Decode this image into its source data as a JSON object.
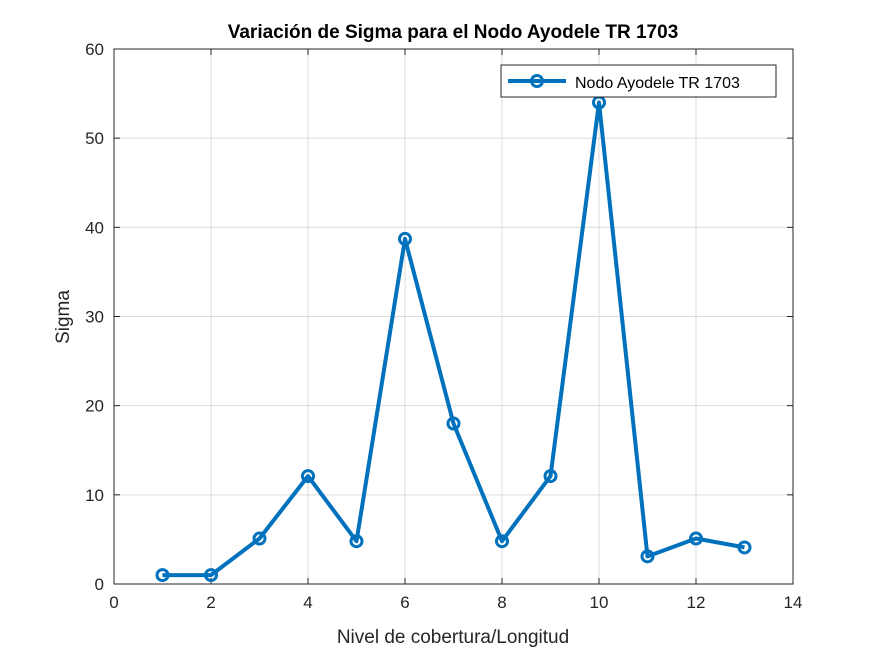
{
  "chart_data": {
    "type": "line",
    "title": "Variación de Sigma para el Nodo Ayodele TR 1703",
    "xlabel": "Nivel de cobertura/Longitud",
    "ylabel": "Sigma",
    "xlim": [
      0,
      14
    ],
    "ylim": [
      0,
      60
    ],
    "xticks": [
      "0",
      "2",
      "4",
      "6",
      "8",
      "10",
      "12",
      "14"
    ],
    "yticks": [
      "0",
      "10",
      "20",
      "30",
      "40",
      "50",
      "60"
    ],
    "grid": true,
    "legend_position": "top-right",
    "x": [
      1,
      2,
      3,
      4,
      5,
      6,
      7,
      8,
      9,
      10,
      11,
      12,
      13
    ],
    "series": [
      {
        "name": "Nodo Ayodele TR 1703",
        "color": "#0072BD",
        "marker": "circle",
        "values": [
          1,
          1,
          5.1,
          12.1,
          4.8,
          38.7,
          18,
          4.8,
          12.1,
          54,
          3.1,
          5.1,
          4.1
        ]
      }
    ]
  }
}
